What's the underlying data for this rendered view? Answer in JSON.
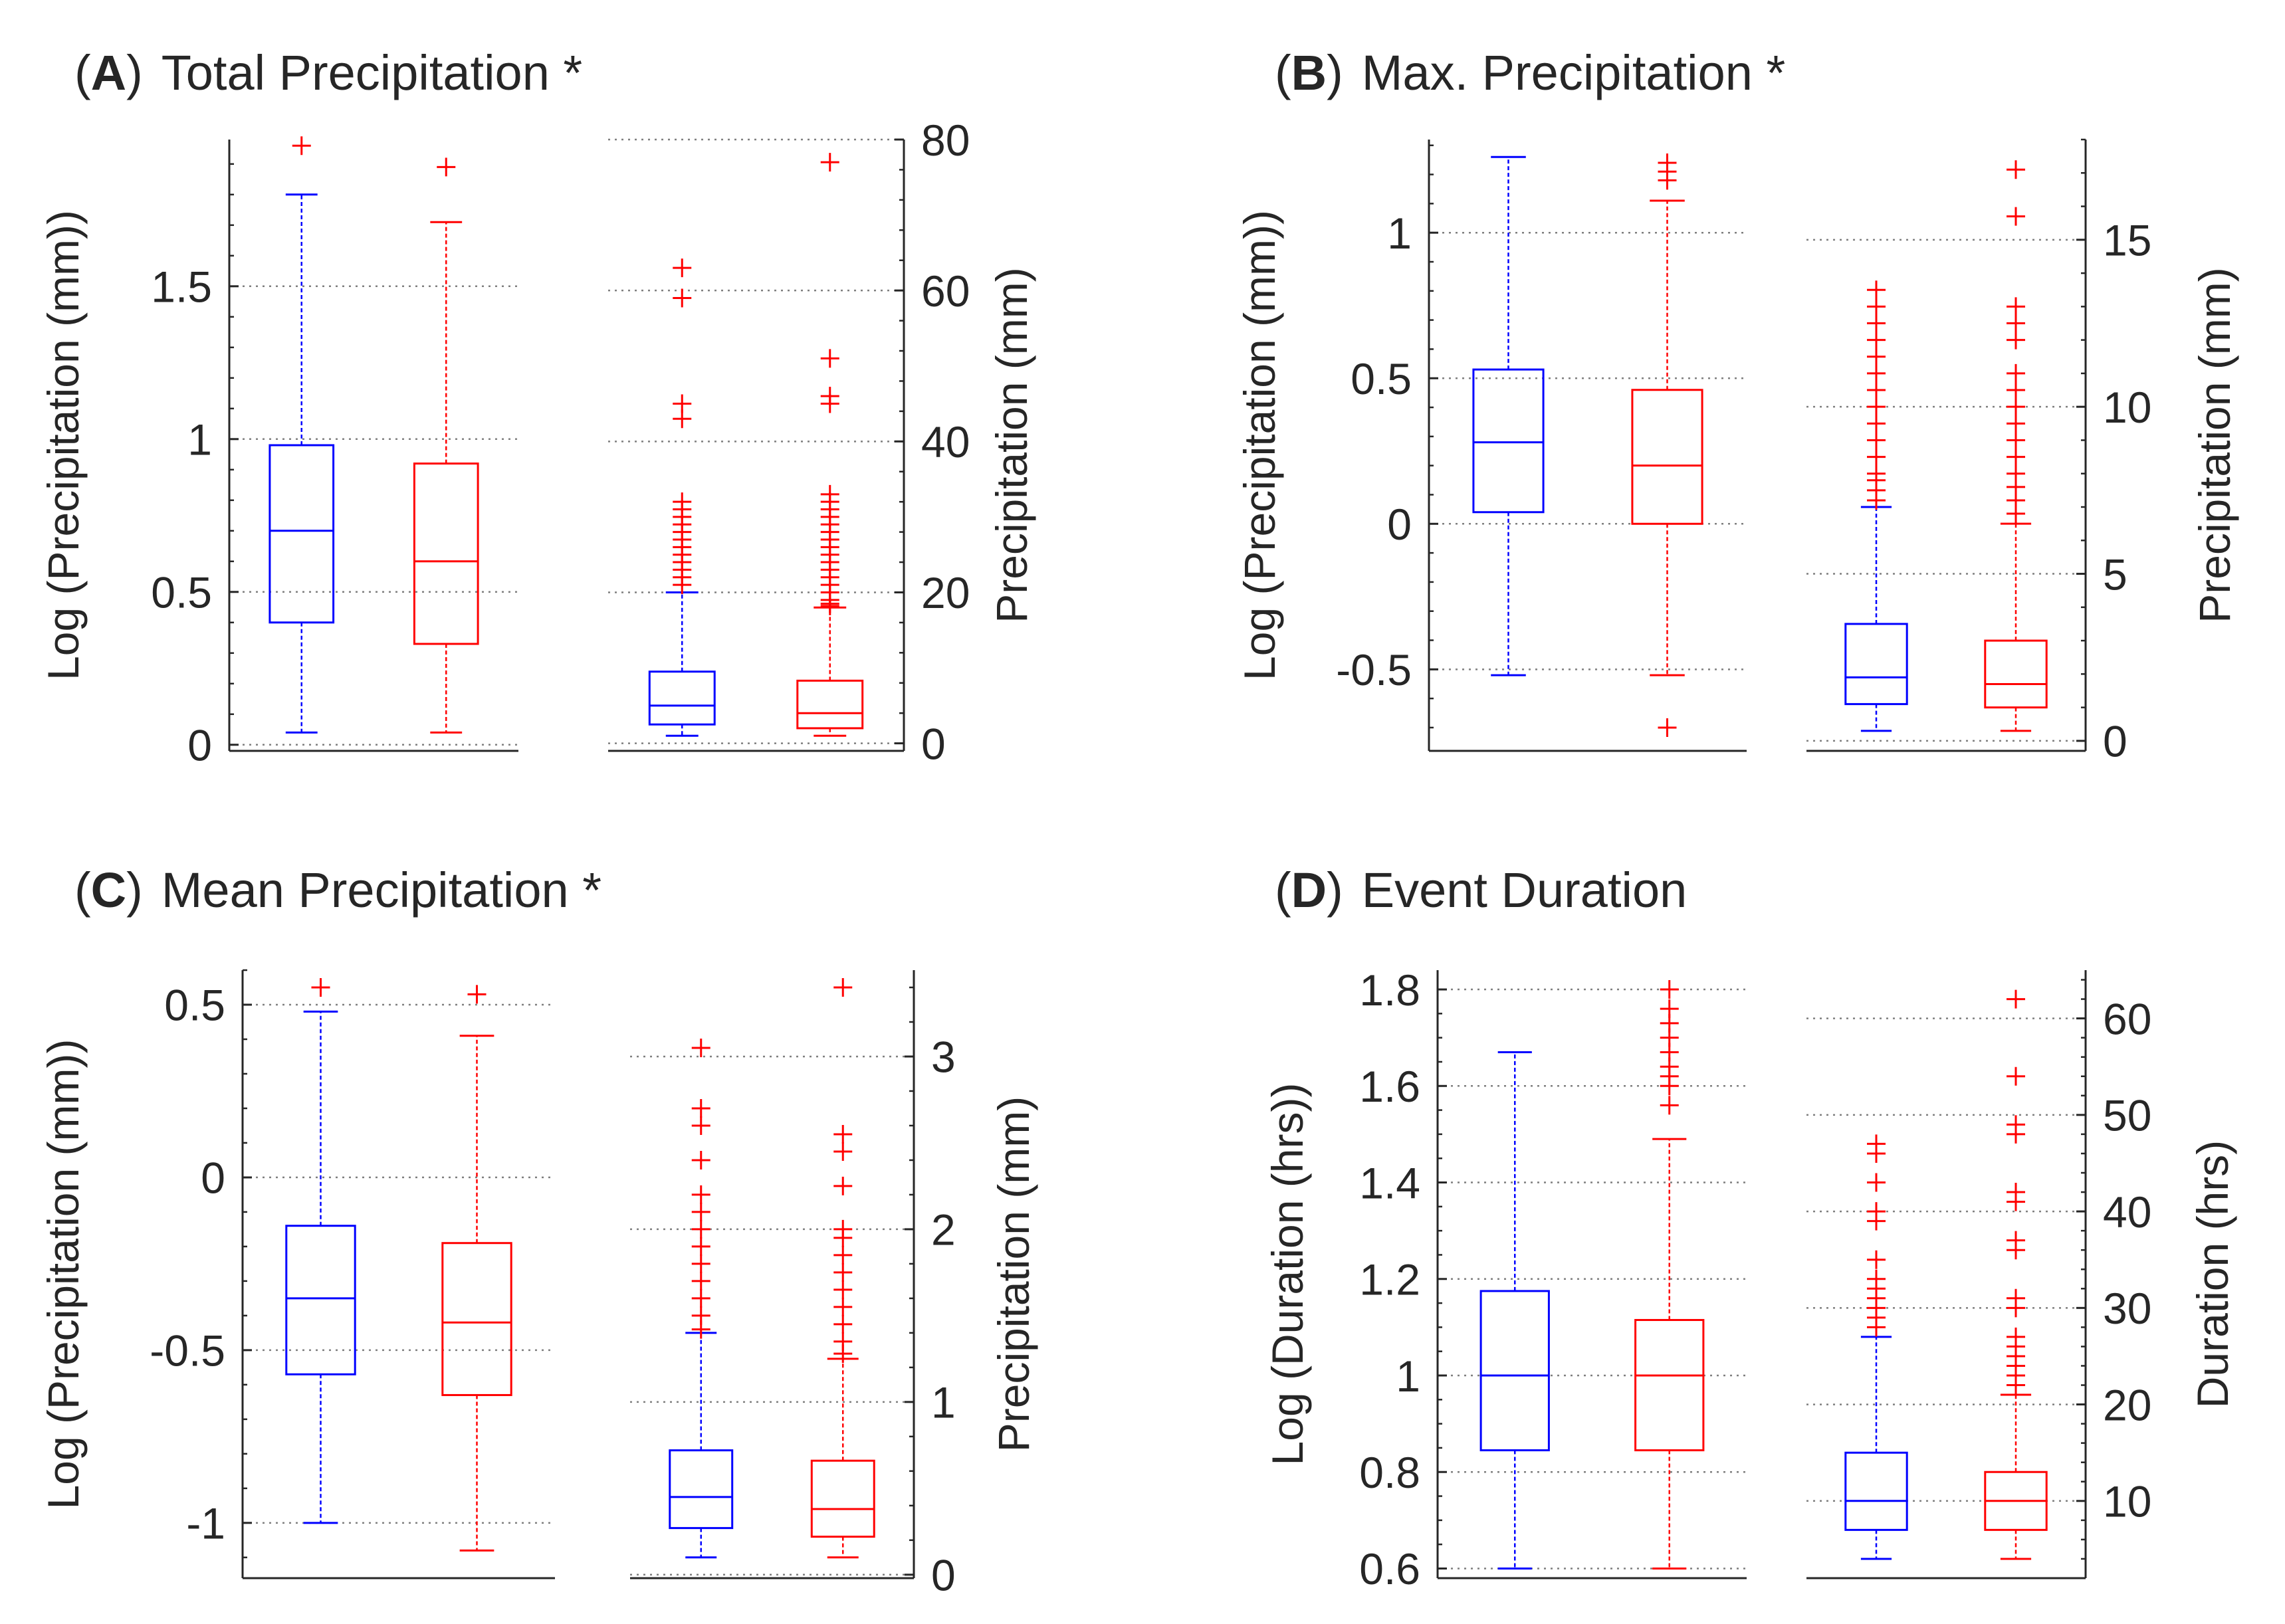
{
  "figure": {
    "colors": {
      "blue": "#0000ff",
      "red": "#ff0000",
      "axis": "#262626",
      "grid": "#7f7f7f"
    }
  },
  "chart_data": [
    {
      "panel": "A",
      "type": "boxplot",
      "title": {
        "open": "(",
        "letter": "A",
        "close": ")",
        "text": "Total Precipitation *"
      },
      "left": {
        "ylabel": "Log (Precipitation (mm))",
        "ylim": [
          -0.02,
          1.98
        ],
        "ticks": [
          0,
          0.5,
          1,
          1.5
        ],
        "tick_labels": [
          "0",
          "0.5",
          "1",
          "1.5"
        ],
        "minor_step": 0.1,
        "boxes": [
          {
            "color": "blue",
            "lw": 0.04,
            "q1": 0.4,
            "med": 0.7,
            "q3": 0.98,
            "uw": 1.8,
            "outliers": [
              1.96
            ]
          },
          {
            "color": "red",
            "lw": 0.04,
            "q1": 0.33,
            "med": 0.6,
            "q3": 0.92,
            "uw": 1.71,
            "outliers": [
              1.89
            ]
          }
        ]
      },
      "right": {
        "ylabel": "Precipitation (mm)",
        "ylim": [
          -1,
          80
        ],
        "ticks": [
          0,
          20,
          40,
          60,
          80
        ],
        "tick_labels": [
          "0",
          "20",
          "40",
          "60",
          "80"
        ],
        "minor_step": 4,
        "boxes": [
          {
            "color": "blue",
            "lw": 1,
            "q1": 2.5,
            "med": 5,
            "q3": 9.5,
            "uw": 20,
            "outliers": [
              21,
              22,
              23,
              24,
              25,
              26,
              27,
              28,
              29,
              30,
              31,
              32,
              43,
              45,
              59,
              63
            ]
          },
          {
            "color": "red",
            "lw": 1,
            "q1": 2,
            "med": 4,
            "q3": 8.3,
            "uw": 18,
            "outliers": [
              18.2,
              18.5,
              19,
              20,
              21,
              22,
              23,
              24,
              25,
              26,
              27,
              28,
              29,
              30,
              31,
              32,
              33,
              45,
              46,
              51,
              77
            ]
          }
        ]
      }
    },
    {
      "panel": "B",
      "type": "boxplot",
      "title": {
        "open": "(",
        "letter": "B",
        "close": ")",
        "text": "Max. Precipitation *"
      },
      "left": {
        "ylabel": "Log (Precipitation (mm))",
        "ylim": [
          -0.78,
          1.32
        ],
        "ticks": [
          -0.5,
          0,
          0.5,
          1
        ],
        "tick_labels": [
          "-0.5",
          "0",
          "0.5",
          "1"
        ],
        "minor_step": 0.1,
        "boxes": [
          {
            "color": "blue",
            "lw": -0.52,
            "q1": 0.04,
            "med": 0.28,
            "q3": 0.53,
            "uw": 1.26,
            "outliers": []
          },
          {
            "color": "red",
            "lw": -0.52,
            "q1": 0.0,
            "med": 0.2,
            "q3": 0.46,
            "uw": 1.11,
            "outliers": [
              1.18,
              1.21,
              1.24,
              -0.7
            ]
          }
        ]
      },
      "right": {
        "ylabel": "Precipitation (mm)",
        "ylim": [
          -0.3,
          18
        ],
        "ticks": [
          0,
          5,
          10,
          15
        ],
        "tick_labels": [
          "0",
          "5",
          "10",
          "15"
        ],
        "minor_step": 1,
        "boxes": [
          {
            "color": "blue",
            "lw": 0.3,
            "q1": 1.1,
            "med": 1.9,
            "q3": 3.5,
            "uw": 7.0,
            "outliers": [
              7.2,
              7.5,
              7.8,
              8.0,
              8.5,
              9.0,
              9.5,
              10,
              10.5,
              11,
              11.5,
              12,
              12.5,
              13.0,
              13.5
            ]
          },
          {
            "color": "red",
            "lw": 0.3,
            "q1": 1.0,
            "med": 1.7,
            "q3": 3.0,
            "uw": 6.5,
            "outliers": [
              6.8,
              7.2,
              7.6,
              8.0,
              8.5,
              9.0,
              9.5,
              10,
              10.5,
              11,
              12,
              12.5,
              13.0,
              15.7,
              17.1
            ]
          }
        ]
      }
    },
    {
      "panel": "C",
      "type": "boxplot",
      "title": {
        "open": "(",
        "letter": "C",
        "close": ")",
        "text": "Mean Precipitation *"
      },
      "left": {
        "ylabel": "Log (Precipitation (mm))",
        "ylim": [
          -1.16,
          0.6
        ],
        "ticks": [
          -1,
          -0.5,
          0,
          0.5
        ],
        "tick_labels": [
          "-1",
          "-0.5",
          "0",
          "0.5"
        ],
        "minor_step": 0.1,
        "boxes": [
          {
            "color": "blue",
            "lw": -1.0,
            "q1": -0.57,
            "med": -0.35,
            "q3": -0.14,
            "uw": 0.48,
            "outliers": [
              0.55
            ]
          },
          {
            "color": "red",
            "lw": -1.08,
            "q1": -0.63,
            "med": -0.42,
            "q3": -0.19,
            "uw": 0.41,
            "outliers": [
              0.53
            ]
          }
        ]
      },
      "right": {
        "ylabel": "Precipitation (mm)",
        "ylim": [
          -0.02,
          3.5
        ],
        "ticks": [
          0,
          1,
          2,
          3
        ],
        "tick_labels": [
          "0",
          "1",
          "2",
          "3"
        ],
        "minor_step": 0.2,
        "boxes": [
          {
            "color": "blue",
            "lw": 0.1,
            "q1": 0.27,
            "med": 0.45,
            "q3": 0.72,
            "uw": 1.4,
            "outliers": [
              1.42,
              1.5,
              1.6,
              1.7,
              1.8,
              1.9,
              2.0,
              2.1,
              2.2,
              2.4,
              2.6,
              2.7,
              3.05
            ]
          },
          {
            "color": "red",
            "lw": 0.1,
            "q1": 0.22,
            "med": 0.38,
            "q3": 0.66,
            "uw": 1.25,
            "outliers": [
              1.28,
              1.35,
              1.45,
              1.55,
              1.65,
              1.75,
              1.85,
              1.95,
              2.0,
              2.25,
              2.45,
              2.55,
              3.4
            ]
          }
        ]
      }
    },
    {
      "panel": "D",
      "type": "boxplot",
      "title": {
        "open": "(",
        "letter": "D",
        "close": ")",
        "text": "Event Duration"
      },
      "left": {
        "ylabel": "Log (Duration (hrs))",
        "ylim": [
          0.58,
          1.84
        ],
        "ticks": [
          0.6,
          0.8,
          1,
          1.2,
          1.4,
          1.6,
          1.8
        ],
        "tick_labels": [
          "0.6",
          "0.8",
          "1",
          "1.2",
          "1.4",
          "1.6",
          "1.8"
        ],
        "minor_step": 0.05,
        "boxes": [
          {
            "color": "blue",
            "lw": 0.6,
            "q1": 0.845,
            "med": 1.0,
            "q3": 1.175,
            "uw": 1.67,
            "outliers": []
          },
          {
            "color": "red",
            "lw": 0.6,
            "q1": 0.845,
            "med": 1.0,
            "q3": 1.115,
            "uw": 1.49,
            "outliers": [
              1.56,
              1.6,
              1.62,
              1.64,
              1.67,
              1.7,
              1.73,
              1.76,
              1.8
            ]
          }
        ]
      },
      "right": {
        "ylabel": "Duration (hrs)",
        "ylim": [
          2,
          65
        ],
        "ticks": [
          10,
          20,
          30,
          40,
          50,
          60
        ],
        "tick_labels": [
          "10",
          "20",
          "30",
          "40",
          "50",
          "60"
        ],
        "minor_step": 2,
        "boxes": [
          {
            "color": "blue",
            "lw": 4,
            "q1": 7,
            "med": 10,
            "q3": 15,
            "uw": 27,
            "outliers": [
              28,
              29,
              30,
              31,
              32,
              33,
              35,
              39,
              40,
              43,
              46,
              47
            ]
          },
          {
            "color": "red",
            "lw": 4,
            "q1": 7,
            "med": 10,
            "q3": 13,
            "uw": 21,
            "outliers": [
              22,
              23,
              24,
              25,
              26,
              27,
              30,
              31,
              36,
              37,
              41,
              42,
              48,
              49,
              54,
              62
            ]
          }
        ]
      }
    }
  ]
}
